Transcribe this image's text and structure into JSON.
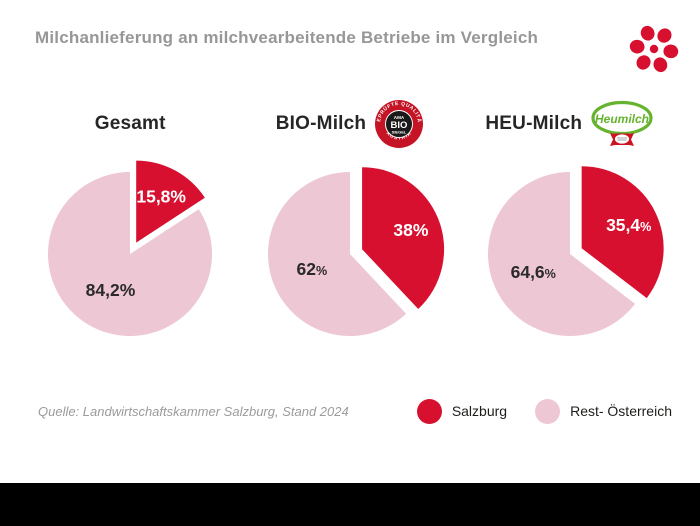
{
  "header": {
    "title": "Milchanlieferung an milchvearbeitende Betriebe im Vergleich"
  },
  "colors": {
    "salzburg_red": "#d8102f",
    "rest_pink": "#edc7d4",
    "dark_text": "#2b2a29",
    "title_gray": "#979797",
    "heumilch_green": "#65b32e",
    "ama_red": "#c41425",
    "black_bar": "#000000"
  },
  "badges": {
    "ama_bio": {
      "ring_top": "GEPRÜFTE QUALITÄT",
      "ring_bottom": "AUSTRIA",
      "line1": "AMA",
      "line2": "BIO",
      "line3": "SIEGEL"
    },
    "heumilch": {
      "text": "Heumilch"
    }
  },
  "chart_data": {
    "type": "pie",
    "title": "Milchanlieferung an milchvearbeitende Betriebe im Vergleich",
    "unit": "percent",
    "legend_position": "bottom-right",
    "legend": [
      {
        "label": "Salzburg",
        "color": "#d8102f"
      },
      {
        "label": "Rest- Österreich",
        "color": "#edc7d4"
      }
    ],
    "charts": [
      {
        "title": "Gesamt",
        "badge": null,
        "slices": [
          {
            "name": "Salzburg",
            "value": 15.8,
            "label": "15,8%",
            "pct_small": false
          },
          {
            "name": "Rest-Österreich",
            "value": 84.2,
            "label": "84,2%",
            "pct_small": false
          }
        ]
      },
      {
        "title": "BIO-Milch",
        "badge": "ama-bio-siegel",
        "slices": [
          {
            "name": "Salzburg",
            "value": 38,
            "label": "38%",
            "pct_small": false
          },
          {
            "name": "Rest-Österreich",
            "value": 62,
            "label": "62%",
            "pct_small": true
          }
        ]
      },
      {
        "title": "HEU-Milch",
        "badge": "heumilch",
        "slices": [
          {
            "name": "Salzburg",
            "value": 35.4,
            "label": "35,4%",
            "pct_small": true
          },
          {
            "name": "Rest-Österreich",
            "value": 64.6,
            "label": "64,6%",
            "pct_small": true
          }
        ]
      }
    ]
  },
  "footer": {
    "source": "Quelle: Landwirtschaftskammer Salzburg, Stand 2024"
  }
}
